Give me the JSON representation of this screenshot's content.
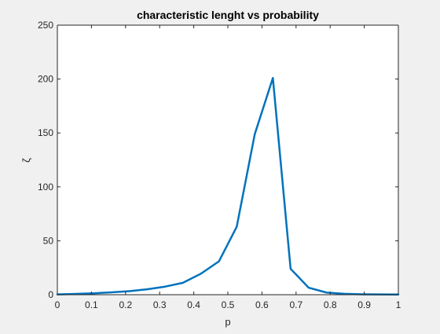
{
  "chart_data": {
    "type": "line",
    "title": "characteristic lenght vs probability",
    "xlabel": "p",
    "ylabel": "ζ",
    "xlim": [
      0,
      1
    ],
    "ylim": [
      0,
      250
    ],
    "xticks": [
      "0",
      "0.1",
      "0.2",
      "0.3",
      "0.4",
      "0.5",
      "0.6",
      "0.7",
      "0.8",
      "0.9",
      "1"
    ],
    "yticks": [
      "0",
      "50",
      "100",
      "150",
      "200",
      "250"
    ],
    "grid": false,
    "series": [
      {
        "color": "#0072bd",
        "x": [
          0,
          0.053,
          0.105,
          0.158,
          0.211,
          0.263,
          0.316,
          0.368,
          0.421,
          0.474,
          0.526,
          0.579,
          0.632,
          0.684,
          0.737,
          0.789,
          0.842,
          0.895,
          0.947,
          1.0
        ],
        "y": [
          0.3,
          0.7,
          1.3,
          2.2,
          3.3,
          5.0,
          7.5,
          11.0,
          19.5,
          31.0,
          63.0,
          149.0,
          201.0,
          24.0,
          6.5,
          2.0,
          0.8,
          0.4,
          0.3,
          0.2
        ]
      }
    ]
  }
}
